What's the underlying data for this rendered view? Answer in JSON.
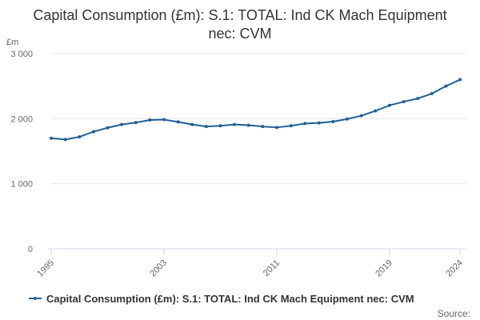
{
  "title": "Capital Consumption (£m): S.1: TOTAL: Ind CK Mach Equipment nec: CVM",
  "source_label": "Source:",
  "colors": {
    "series": "#206095",
    "grid": "#e6e6e6",
    "axis": "#ccd6eb",
    "text": "#333333"
  },
  "chart_data": {
    "type": "line",
    "title": "Capital Consumption (£m): S.1: TOTAL: Ind CK Mach Equipment nec: CVM",
    "ylabel": "£m",
    "xlabel": "",
    "ylim": [
      0,
      3000
    ],
    "xlim": [
      1995,
      2024
    ],
    "grid": true,
    "legend_position": "bottom-left",
    "y_ticks": [
      {
        "value": 0,
        "label": "0"
      },
      {
        "value": 1000,
        "label": "1 000"
      },
      {
        "value": 2000,
        "label": "2 000"
      },
      {
        "value": 3000,
        "label": "3 000"
      }
    ],
    "x_ticks": [
      {
        "value": 1995,
        "label": "1995"
      },
      {
        "value": 2003,
        "label": "2003"
      },
      {
        "value": 2011,
        "label": "2011"
      },
      {
        "value": 2019,
        "label": "2019"
      },
      {
        "value": 2024,
        "label": "2024"
      }
    ],
    "x": [
      1995,
      1996,
      1997,
      1998,
      1999,
      2000,
      2001,
      2002,
      2003,
      2004,
      2005,
      2006,
      2007,
      2008,
      2009,
      2010,
      2011,
      2012,
      2013,
      2014,
      2015,
      2016,
      2017,
      2018,
      2019,
      2020,
      2021,
      2022,
      2023,
      2024
    ],
    "series": [
      {
        "name": "Capital Consumption (£m): S.1: TOTAL: Ind CK Mach Equipment nec: CVM",
        "values": [
          1700,
          1680,
          1720,
          1800,
          1860,
          1910,
          1940,
          1980,
          1985,
          1950,
          1910,
          1880,
          1890,
          1910,
          1900,
          1880,
          1865,
          1890,
          1925,
          1935,
          1955,
          1995,
          2045,
          2120,
          2205,
          2260,
          2310,
          2385,
          2500,
          2600
        ]
      }
    ]
  }
}
